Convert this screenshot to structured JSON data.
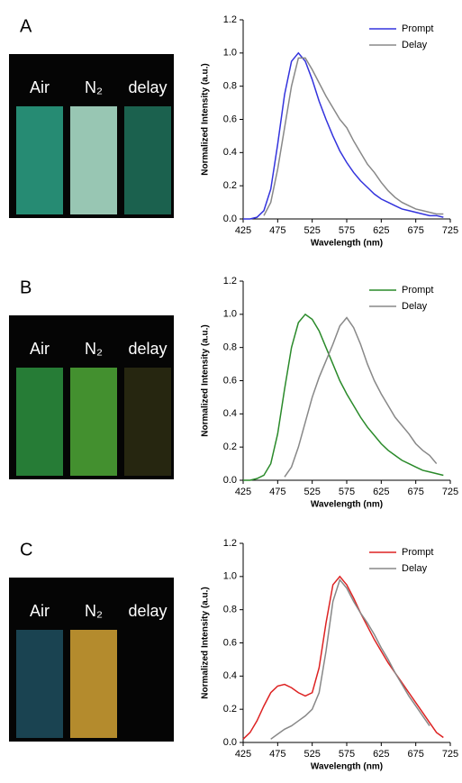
{
  "panels": [
    {
      "label": "A",
      "photo_labels": [
        "Air",
        "N₂",
        "delay"
      ]
    },
    {
      "label": "B",
      "photo_labels": [
        "Air",
        "N₂",
        "delay"
      ]
    },
    {
      "label": "C",
      "photo_labels": [
        "Air",
        "N₂",
        "delay"
      ]
    }
  ],
  "chart_data": [
    {
      "type": "line",
      "xlabel": "Wavelength (nm)",
      "ylabel": "Normalized Intensity (a.u.)",
      "x": [
        425,
        435,
        445,
        455,
        465,
        475,
        485,
        495,
        505,
        515,
        525,
        535,
        545,
        555,
        565,
        575,
        585,
        595,
        605,
        615,
        625,
        635,
        645,
        655,
        665,
        675,
        685,
        695,
        705,
        715
      ],
      "xlim": [
        425,
        725
      ],
      "xticks": [
        425,
        475,
        525,
        575,
        625,
        675,
        725
      ],
      "ylim": [
        0,
        1.2
      ],
      "yticks": [
        {
          "value": 0,
          "label": "0.0"
        },
        0.2,
        0.4,
        0.6,
        0.8,
        {
          "value": 1,
          "label": "1.0"
        },
        1.2
      ],
      "legend": "upper right",
      "series": [
        {
          "name": "Prompt",
          "color": "#3333dd",
          "values": [
            0,
            0,
            0.01,
            0.05,
            0.18,
            0.45,
            0.75,
            0.95,
            1.0,
            0.95,
            0.84,
            0.71,
            0.6,
            0.5,
            0.41,
            0.34,
            0.28,
            0.23,
            0.19,
            0.15,
            0.12,
            0.1,
            0.08,
            0.06,
            0.05,
            0.04,
            0.03,
            0.02,
            0.02,
            0.01
          ]
        },
        {
          "name": "Delay",
          "color": "#888888",
          "values": [
            null,
            null,
            null,
            0.02,
            0.1,
            0.3,
            0.55,
            0.8,
            0.97,
            0.97,
            0.9,
            0.82,
            0.74,
            0.67,
            0.6,
            0.55,
            0.47,
            0.4,
            0.33,
            0.28,
            0.22,
            0.17,
            0.13,
            0.1,
            0.08,
            0.06,
            0.05,
            0.04,
            0.03,
            0.03
          ]
        }
      ]
    },
    {
      "type": "line",
      "xlabel": "Wavelength (nm)",
      "ylabel": "Normalized Intensity (a.u.)",
      "x": [
        425,
        435,
        445,
        455,
        465,
        475,
        485,
        495,
        505,
        515,
        525,
        535,
        545,
        555,
        565,
        575,
        585,
        595,
        605,
        615,
        625,
        635,
        645,
        655,
        665,
        675,
        685,
        695,
        705,
        715
      ],
      "xlim": [
        425,
        725
      ],
      "xticks": [
        425,
        475,
        525,
        575,
        625,
        675,
        725
      ],
      "ylim": [
        0,
        1.2
      ],
      "yticks": [
        {
          "value": 0,
          "label": "0.0"
        },
        0.2,
        0.4,
        0.6,
        0.8,
        {
          "value": 1,
          "label": "1.0"
        },
        1.2
      ],
      "legend": "upper right",
      "series": [
        {
          "name": "Prompt",
          "color": "#2a8a2a",
          "values": [
            0,
            0,
            0.01,
            0.03,
            0.1,
            0.28,
            0.55,
            0.8,
            0.95,
            1.0,
            0.97,
            0.9,
            0.8,
            0.7,
            0.6,
            0.52,
            0.45,
            0.38,
            0.32,
            0.27,
            0.22,
            0.18,
            0.15,
            0.12,
            0.1,
            0.08,
            0.06,
            0.05,
            0.04,
            0.03
          ]
        },
        {
          "name": "Delay",
          "color": "#888888",
          "values": [
            null,
            null,
            null,
            null,
            null,
            null,
            0.02,
            0.08,
            0.2,
            0.35,
            0.5,
            0.62,
            0.72,
            0.82,
            0.93,
            0.98,
            0.92,
            0.82,
            0.7,
            0.6,
            0.52,
            0.45,
            0.38,
            0.33,
            0.28,
            0.22,
            0.18,
            0.15,
            0.1,
            null
          ]
        }
      ]
    },
    {
      "type": "line",
      "xlabel": "Wavelength (nm)",
      "ylabel": "Normalized Intensity (a.u.)",
      "x": [
        425,
        435,
        445,
        455,
        465,
        475,
        485,
        495,
        505,
        515,
        525,
        535,
        545,
        555,
        565,
        575,
        585,
        595,
        605,
        615,
        625,
        635,
        645,
        655,
        665,
        675,
        685,
        695,
        705,
        715
      ],
      "xlim": [
        425,
        725
      ],
      "xticks": [
        425,
        475,
        525,
        575,
        625,
        675,
        725
      ],
      "ylim": [
        0,
        1.2
      ],
      "yticks": [
        {
          "value": 0,
          "label": "0.0"
        },
        0.2,
        0.4,
        0.6,
        0.8,
        {
          "value": 1,
          "label": "1.0"
        },
        1.2
      ],
      "legend": "upper right",
      "series": [
        {
          "name": "Prompt",
          "color": "#dd2222",
          "values": [
            0.02,
            0.06,
            0.13,
            0.22,
            0.3,
            0.34,
            0.35,
            0.33,
            0.3,
            0.28,
            0.3,
            0.45,
            0.72,
            0.95,
            1.0,
            0.95,
            0.87,
            0.78,
            0.7,
            0.62,
            0.55,
            0.48,
            0.42,
            0.36,
            0.3,
            0.24,
            0.18,
            0.12,
            0.06,
            0.03
          ]
        },
        {
          "name": "Delay",
          "color": "#888888",
          "values": [
            null,
            null,
            null,
            null,
            0.02,
            0.05,
            0.08,
            0.1,
            0.13,
            0.16,
            0.2,
            0.3,
            0.55,
            0.85,
            0.98,
            0.93,
            0.85,
            0.78,
            0.72,
            0.65,
            0.57,
            0.5,
            0.42,
            0.35,
            0.28,
            0.22,
            0.16,
            0.1,
            null,
            null
          ]
        }
      ]
    }
  ]
}
